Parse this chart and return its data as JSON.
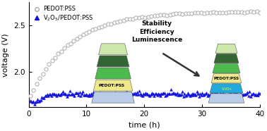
{
  "xlabel": "time (h)",
  "ylabel": "voltage (V)",
  "xlim": [
    0,
    40
  ],
  "ylim": [
    1.62,
    2.75
  ],
  "yticks": [
    2.0,
    2.5
  ],
  "xticks": [
    0,
    10,
    20,
    30,
    40
  ],
  "pedot_color": "#aaaaaa",
  "v2o5_color": "#1111dd",
  "stability_text": "Stability\nEfficiency\nLuminescence",
  "legend_pedot": "PEDOT:PSS",
  "legend_v2o5": "V₂O₅/PEDOT:PSS",
  "left_stack_layers": [
    {
      "color": "#b8d4f0",
      "label": "",
      "label_color": "black"
    },
    {
      "color": "#f0e87a",
      "label": "PEDOT:PSS",
      "label_color": "black"
    },
    {
      "color": "#4db848",
      "label": "",
      "label_color": "black"
    },
    {
      "color": "#2e7d32",
      "label": "",
      "label_color": "black"
    },
    {
      "color": "#d4e8a0",
      "label": "",
      "label_color": "black"
    }
  ],
  "right_stack_layers": [
    {
      "color": "#b8d4f0",
      "label": "",
      "label_color": "black"
    },
    {
      "color": "#00aaee",
      "label": "V₂O₅",
      "label_color": "yellow"
    },
    {
      "color": "#f0e87a",
      "label": "PEDOT:PSS",
      "label_color": "black"
    },
    {
      "color": "#4db848",
      "label": "",
      "label_color": "black"
    },
    {
      "color": "#2e7d32",
      "label": "",
      "label_color": "black"
    },
    {
      "color": "#d4e8a0",
      "label": "",
      "label_color": "black"
    }
  ]
}
